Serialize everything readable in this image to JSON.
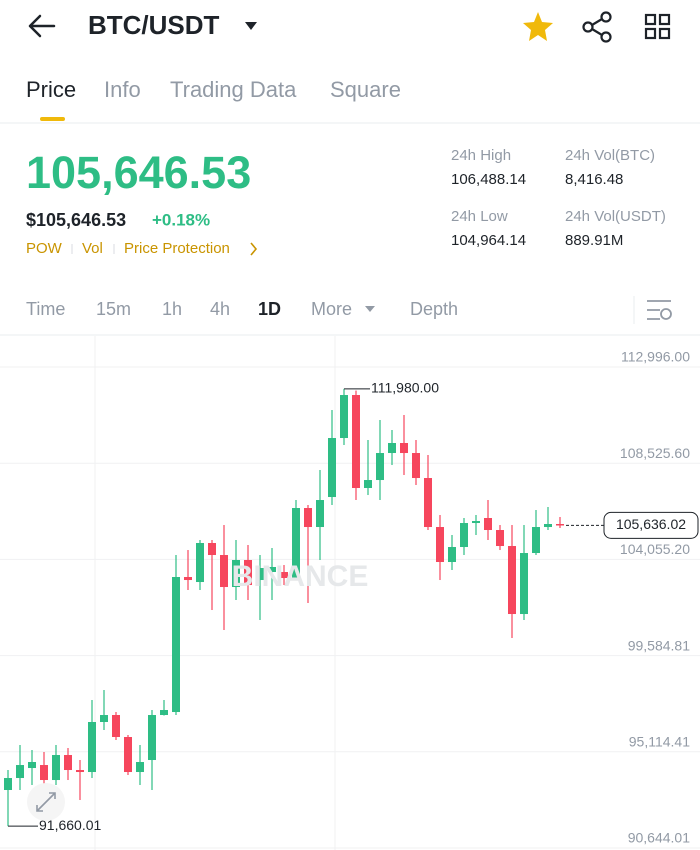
{
  "header": {
    "pair": "BTC/USDT"
  },
  "tabs": [
    "Price",
    "Info",
    "Trading Data",
    "Square"
  ],
  "ticker": {
    "price": "105,646.53",
    "price_usd": "$105,646.53",
    "change": "+0.18%",
    "tags": [
      "POW",
      "Vol",
      "Price Protection"
    ],
    "stats": [
      {
        "label": "24h High",
        "value": "106,488.14"
      },
      {
        "label": "24h Vol(BTC)",
        "value": "8,416.48"
      },
      {
        "label": "24h Low",
        "value": "104,964.14"
      },
      {
        "label": "24h Vol(USDT)",
        "value": "889.91M"
      }
    ]
  },
  "intervals": [
    "Time",
    "15m",
    "1h",
    "4h",
    "1D",
    "More",
    "Depth"
  ],
  "watermark": "BINANCE",
  "chart_data": {
    "type": "candlestick",
    "up_color": "#2ebd85",
    "down_color": "#f6465d",
    "ylim": [
      90551,
      114390
    ],
    "yticks": [
      {
        "value": 90644.01,
        "label": "90,644.01"
      },
      {
        "value": 95114.41,
        "label": "95,114.41"
      },
      {
        "value": 99584.81,
        "label": "99,584.81"
      },
      {
        "value": 104055.2,
        "label": "104,055.20"
      },
      {
        "value": 108525.6,
        "label": "108,525.60"
      },
      {
        "value": 112996.0,
        "label": "112,996.00"
      }
    ],
    "grid": true,
    "open": [
      93339,
      93896,
      94361,
      94500,
      93803,
      94965,
      94268,
      94175,
      96499,
      96824,
      95802,
      94175,
      94733,
      96824,
      96963,
      103237,
      103004,
      104817,
      104259,
      102772,
      104027,
      103097,
      103469,
      103469,
      103190,
      106443,
      105560,
      106954,
      109696,
      111694,
      107373,
      107744,
      108999,
      109464,
      108999,
      107837,
      105560,
      103934,
      104631,
      105746,
      105979,
      105421,
      104677,
      101517,
      104352,
      105560,
      105700
    ],
    "high": [
      94268,
      95430,
      95197,
      95105,
      95430,
      95290,
      94733,
      97521,
      97986,
      96963,
      95895,
      95430,
      97056,
      97521,
      104259,
      104491,
      104956,
      104956,
      105653,
      104956,
      104724,
      104259,
      104584,
      103794,
      106815,
      106583,
      108209,
      110997,
      111980.0,
      111900,
      109603,
      110533,
      110068,
      110765,
      109603,
      108906,
      106118,
      105189,
      105979,
      106118,
      106815,
      105653,
      105653,
      105653,
      106350,
      106490,
      106025
    ],
    "low": [
      91660.01,
      93339,
      93571,
      93339,
      93571,
      93803,
      92874,
      93896,
      96127,
      95662,
      94036,
      93571,
      93339,
      96800,
      96824,
      102633,
      102633,
      101703,
      100774,
      102168,
      102168,
      101239,
      102168,
      102865,
      103097,
      102029,
      104027,
      106583,
      109371,
      106815,
      107047,
      106815,
      108441,
      107977,
      107512,
      105421,
      103097,
      103562,
      104259,
      105189,
      104956,
      104491,
      100402,
      101239,
      104259,
      105421,
      105514
    ],
    "close": [
      93896,
      94500,
      94640,
      93803,
      94965,
      94268,
      94175,
      96499,
      96824,
      95802,
      94175,
      94640,
      96824,
      97056,
      103237,
      103097,
      104817,
      104259,
      102772,
      104027,
      102865,
      103655,
      103702,
      103190,
      106443,
      105560,
      106815,
      109696,
      111694,
      107373,
      107744,
      108999,
      109464,
      108999,
      107837,
      105560,
      103934,
      104631,
      105746,
      105839,
      105421,
      104677,
      101517,
      104352,
      105560,
      105700,
      105636.02
    ],
    "max_label": {
      "value": 111980.0,
      "label": "111,980.00"
    },
    "min_label": {
      "value": 91660.01,
      "label": "91,660.01"
    },
    "last_price": {
      "value": 105636.02,
      "label": "105,636.02"
    }
  }
}
